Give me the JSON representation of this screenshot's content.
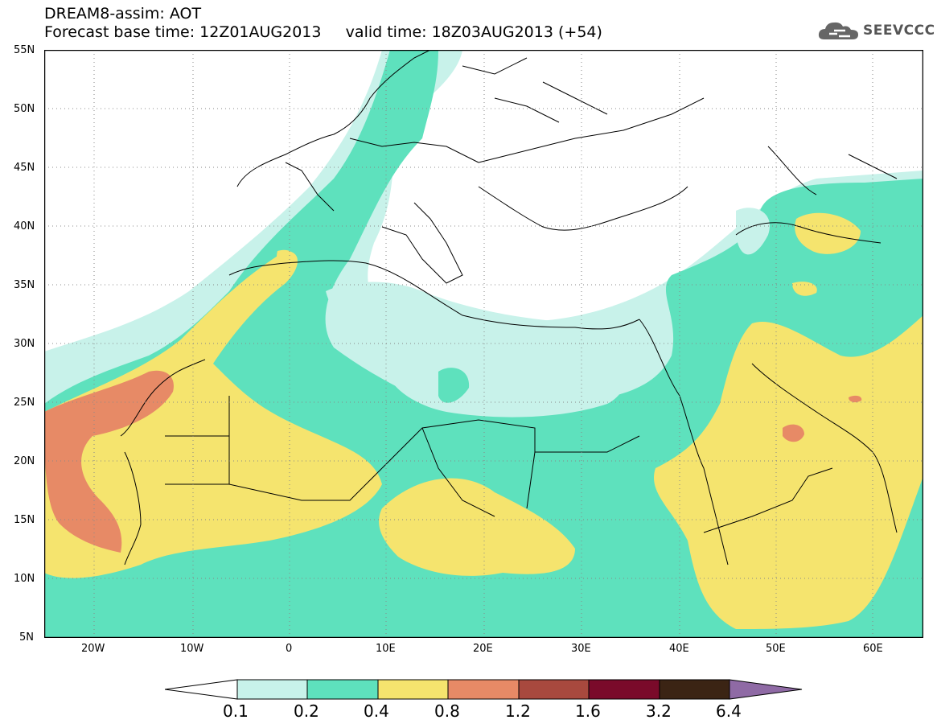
{
  "header": {
    "line1": "DREAM8-assim: AOT",
    "line2": "Forecast base time: 12Z01AUG2013     valid time: 18Z03AUG2013 (+54)"
  },
  "logo": {
    "text": "SEEVCCC",
    "icon": "cloud-logo-icon"
  },
  "map": {
    "lat_labels": [
      "55N",
      "50N",
      "45N",
      "40N",
      "35N",
      "30N",
      "25N",
      "20N",
      "15N",
      "10N",
      "5N"
    ],
    "lon_labels": [
      "20W",
      "10W",
      "0",
      "10E",
      "20E",
      "30E",
      "40E",
      "50E",
      "60E"
    ]
  },
  "colorbar": {
    "ticks": [
      "0.1",
      "0.2",
      "0.4",
      "0.8",
      "1.2",
      "1.6",
      "3.2",
      "6.4"
    ],
    "colors": [
      "#ffffff",
      "#c8f2ea",
      "#5ee1bd",
      "#f5e46e",
      "#e78a66",
      "#a8493e",
      "#7a0a2a",
      "#3b2414",
      "#8f6aa5"
    ]
  }
}
